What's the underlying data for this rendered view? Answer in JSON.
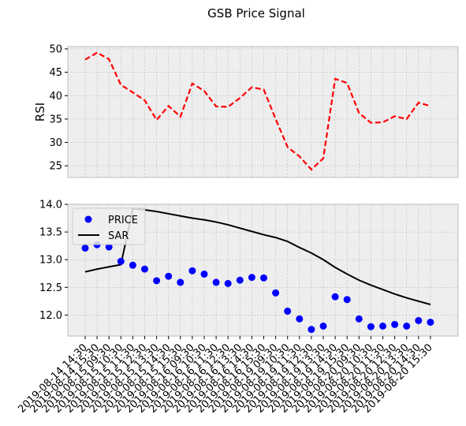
{
  "chart_data": [
    {
      "type": "line",
      "title": "GSB Price Signal",
      "ylabel": "RSI",
      "ylim": [
        22.5,
        50.5
      ],
      "yticks": [
        25,
        30,
        35,
        40,
        45,
        50
      ],
      "grid": true,
      "series": [
        {
          "color": "#ff0000",
          "style": "dashed",
          "values": [
            47.7,
            49.2,
            47.8,
            42.3,
            40.7,
            39.0,
            34.8,
            37.8,
            35.5,
            42.6,
            41.0,
            37.7,
            37.6,
            39.5,
            41.8,
            41.3,
            35.0,
            29.0,
            27.0,
            24.2,
            26.6,
            43.6,
            42.7,
            36.3,
            34.2,
            34.3,
            35.6,
            35.0,
            38.5,
            37.8
          ]
        }
      ]
    },
    {
      "type": "line",
      "ylim": [
        11.62,
        14.0
      ],
      "yticks": [
        12.0,
        12.5,
        13.0,
        13.5,
        14.0
      ],
      "grid": true,
      "legend_position": "top-left",
      "x": [
        "2019-08-14 14:30",
        "2019-08-14 15:30",
        "2019-08-15 09:30",
        "2019-08-15 10:30",
        "2019-08-15 11:30",
        "2019-08-15 12:30",
        "2019-08-15 13:30",
        "2019-08-15 14:30",
        "2019-08-15 15:30",
        "2019-08-16 09:30",
        "2019-08-16 10:30",
        "2019-08-16 11:30",
        "2019-08-16 12:30",
        "2019-08-16 13:30",
        "2019-08-16 14:30",
        "2019-08-16 15:30",
        "2019-08-19 09:30",
        "2019-08-19 10:30",
        "2019-08-19 11:30",
        "2019-08-19 12:30",
        "2019-08-19 13:30",
        "2019-08-19 14:30",
        "2019-08-19 15:30",
        "2019-08-20 09:30",
        "2019-08-20 10:30",
        "2019-08-20 11:30",
        "2019-08-20 12:30",
        "2019-08-20 13:30",
        "2019-08-20 14:30",
        "2019-08-20 15:30"
      ],
      "series": [
        {
          "name": "PRICE",
          "type": "scatter",
          "color": "#0000ff",
          "values": [
            13.21,
            13.27,
            13.23,
            12.97,
            12.9,
            12.83,
            12.62,
            12.7,
            12.59,
            12.8,
            12.74,
            12.59,
            12.57,
            12.63,
            12.68,
            12.67,
            12.4,
            12.07,
            11.93,
            11.74,
            11.8,
            12.33,
            12.28,
            11.93,
            11.79,
            11.8,
            11.83,
            11.8,
            11.9,
            11.87
          ]
        },
        {
          "name": "SAR",
          "type": "line",
          "color": "#000000",
          "values": [
            12.78,
            12.83,
            12.87,
            12.91,
            13.92,
            13.9,
            13.87,
            13.83,
            13.79,
            13.75,
            13.72,
            13.68,
            13.63,
            13.57,
            13.51,
            13.45,
            13.4,
            13.33,
            13.22,
            13.12,
            13.0,
            12.86,
            12.74,
            12.63,
            12.54,
            12.46,
            12.38,
            12.31,
            12.25,
            12.19
          ]
        }
      ]
    }
  ]
}
